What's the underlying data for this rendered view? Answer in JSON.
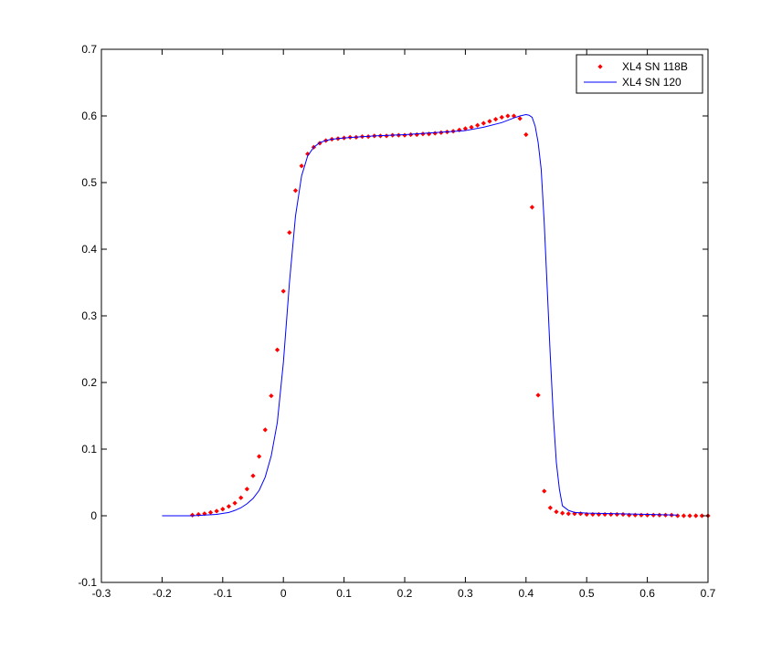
{
  "chart_data": {
    "type": "scatter",
    "title": "",
    "xlabel": "",
    "ylabel": "",
    "xlim": [
      -0.3,
      0.7
    ],
    "ylim": [
      -0.1,
      0.7
    ],
    "xticks": [
      "-0.3",
      "-0.2",
      "-0.1",
      "0",
      "0.1",
      "0.2",
      "0.3",
      "0.4",
      "0.5",
      "0.6",
      "0.7"
    ],
    "yticks": [
      "-0.1",
      "0",
      "0.1",
      "0.2",
      "0.3",
      "0.4",
      "0.5",
      "0.6",
      "0.7"
    ],
    "grid": false,
    "legend_position": "top-right",
    "series": [
      {
        "name": "XL4 SN 118B",
        "style": "markers",
        "color": "#ff0000",
        "x": [
          -0.15,
          -0.14,
          -0.13,
          -0.12,
          -0.11,
          -0.1,
          -0.09,
          -0.08,
          -0.07,
          -0.06,
          -0.05,
          -0.04,
          -0.03,
          -0.02,
          -0.01,
          0.0,
          0.01,
          0.02,
          0.03,
          0.04,
          0.05,
          0.06,
          0.07,
          0.08,
          0.09,
          0.1,
          0.11,
          0.12,
          0.13,
          0.14,
          0.15,
          0.16,
          0.17,
          0.18,
          0.19,
          0.2,
          0.21,
          0.22,
          0.23,
          0.24,
          0.25,
          0.26,
          0.27,
          0.28,
          0.29,
          0.3,
          0.31,
          0.32,
          0.33,
          0.34,
          0.35,
          0.36,
          0.37,
          0.38,
          0.39,
          0.4,
          0.41,
          0.42,
          0.43,
          0.44,
          0.45,
          0.46,
          0.47,
          0.48,
          0.49,
          0.5,
          0.51,
          0.52,
          0.53,
          0.54,
          0.55,
          0.56,
          0.57,
          0.58,
          0.59,
          0.6,
          0.61,
          0.62,
          0.63,
          0.64,
          0.65,
          0.66,
          0.67,
          0.68,
          0.69,
          0.7
        ],
        "y": [
          0.001,
          0.002,
          0.003,
          0.005,
          0.007,
          0.01,
          0.014,
          0.019,
          0.027,
          0.04,
          0.06,
          0.089,
          0.129,
          0.18,
          0.249,
          0.337,
          0.425,
          0.488,
          0.525,
          0.543,
          0.553,
          0.559,
          0.563,
          0.565,
          0.566,
          0.567,
          0.568,
          0.568,
          0.569,
          0.569,
          0.57,
          0.57,
          0.57,
          0.571,
          0.571,
          0.571,
          0.572,
          0.572,
          0.573,
          0.573,
          0.574,
          0.575,
          0.576,
          0.577,
          0.579,
          0.581,
          0.583,
          0.586,
          0.589,
          0.592,
          0.595,
          0.598,
          0.6,
          0.6,
          0.596,
          0.572,
          0.463,
          0.181,
          0.037,
          0.012,
          0.006,
          0.004,
          0.003,
          0.003,
          0.003,
          0.002,
          0.002,
          0.002,
          0.002,
          0.002,
          0.002,
          0.002,
          0.001,
          0.001,
          0.001,
          0.001,
          0.001,
          0.001,
          0.001,
          0.001,
          0.0,
          0.0,
          0.0,
          0.0,
          0.0,
          0.0
        ]
      },
      {
        "name": "XL4 SN 120",
        "style": "line",
        "color": "#0000ff",
        "x": [
          -0.2,
          -0.15,
          -0.13,
          -0.11,
          -0.09,
          -0.08,
          -0.07,
          -0.06,
          -0.05,
          -0.04,
          -0.03,
          -0.02,
          -0.01,
          0.0,
          0.01,
          0.02,
          0.03,
          0.04,
          0.05,
          0.06,
          0.07,
          0.08,
          0.1,
          0.15,
          0.2,
          0.25,
          0.3,
          0.33,
          0.36,
          0.38,
          0.39,
          0.4,
          0.405,
          0.41,
          0.415,
          0.42,
          0.425,
          0.43,
          0.435,
          0.44,
          0.445,
          0.45,
          0.455,
          0.46,
          0.47,
          0.48,
          0.5,
          0.55,
          0.6,
          0.65
        ],
        "y": [
          0.0,
          0.0,
          0.001,
          0.002,
          0.005,
          0.008,
          0.012,
          0.018,
          0.026,
          0.038,
          0.058,
          0.09,
          0.14,
          0.23,
          0.35,
          0.45,
          0.51,
          0.54,
          0.553,
          0.56,
          0.563,
          0.565,
          0.567,
          0.57,
          0.572,
          0.575,
          0.578,
          0.583,
          0.59,
          0.597,
          0.6,
          0.602,
          0.601,
          0.598,
          0.585,
          0.56,
          0.52,
          0.44,
          0.34,
          0.24,
          0.15,
          0.08,
          0.04,
          0.015,
          0.008,
          0.005,
          0.004,
          0.003,
          0.002,
          0.001
        ]
      }
    ]
  },
  "colors": {
    "marker": "#ff0000",
    "line": "#0000ff",
    "axes": "#000000",
    "background": "#ffffff"
  }
}
